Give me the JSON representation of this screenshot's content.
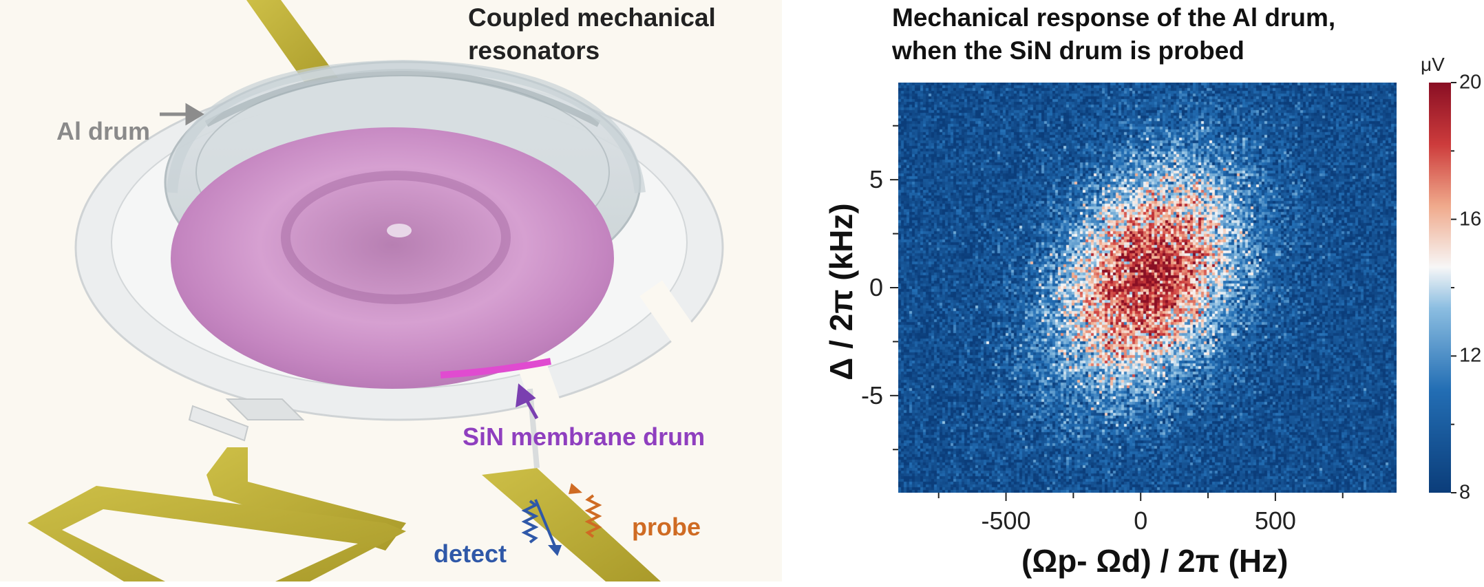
{
  "left": {
    "title_line1": "Coupled mechanical",
    "title_line2": "resonators",
    "al_drum_label": "Al drum",
    "sin_label": "SiN membrane drum",
    "detect_label": "detect",
    "probe_label": "probe"
  },
  "right": {
    "title_line1": "Mechanical response of the Al drum,",
    "title_line2": "when the SiN drum is probed",
    "colorbar_unit": "μV"
  },
  "chart_data": {
    "type": "heatmap",
    "title": "Mechanical response of the Al drum, when the SiN drum is probed",
    "xlabel": "(Ωp- Ωd) / 2π (Hz)",
    "ylabel": "Δ / 2π (kHz)",
    "xlim": [
      -900,
      950
    ],
    "ylim": [
      -9.5,
      9.5
    ],
    "xticks": [
      -500,
      0,
      500
    ],
    "yticks": [
      5,
      0,
      -5
    ],
    "colorbar": {
      "unit": "μV",
      "range": [
        8,
        20
      ],
      "ticks": [
        20,
        16,
        12,
        8
      ]
    },
    "colors": {
      "low": "#0b3d7a",
      "mid": "#f7f7f7",
      "high": "#8a0f24"
    },
    "peak": {
      "x_hz": 30,
      "y_khz": 0.5,
      "value_uv": 19
    },
    "background_uv": 9
  }
}
